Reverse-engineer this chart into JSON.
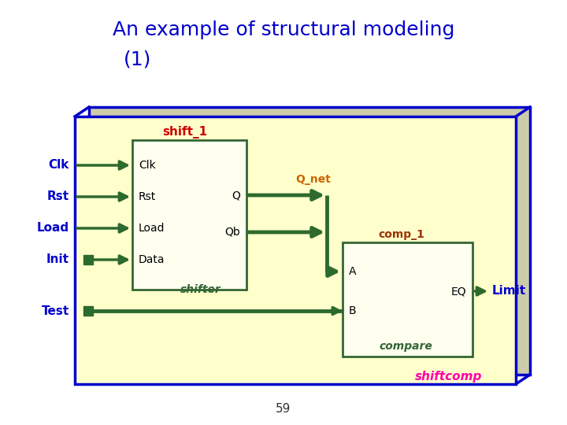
{
  "title_line1": "An example of structural modeling",
  "title_line2": "(1)",
  "title_color": "#0000cc",
  "title_fontsize": 18,
  "bg_color": "#ffffff",
  "page_number": "59",
  "arrow_color": "#2d6a2d",
  "arrow_lw": 2.5,
  "box_edge_color": "#336633",
  "outer_edge_color": "#0000cc",
  "outer_face_color": "#ffffcc",
  "shifter_face_color": "#ffffee",
  "compare_face_color": "#ffffee",
  "shift1_color": "#cc0000",
  "comp1_color": "#993300",
  "qnet_color": "#cc6600",
  "shiftcomp_color": "#ff00aa",
  "label_color": "#0000cc",
  "limit_color": "#0000cc"
}
